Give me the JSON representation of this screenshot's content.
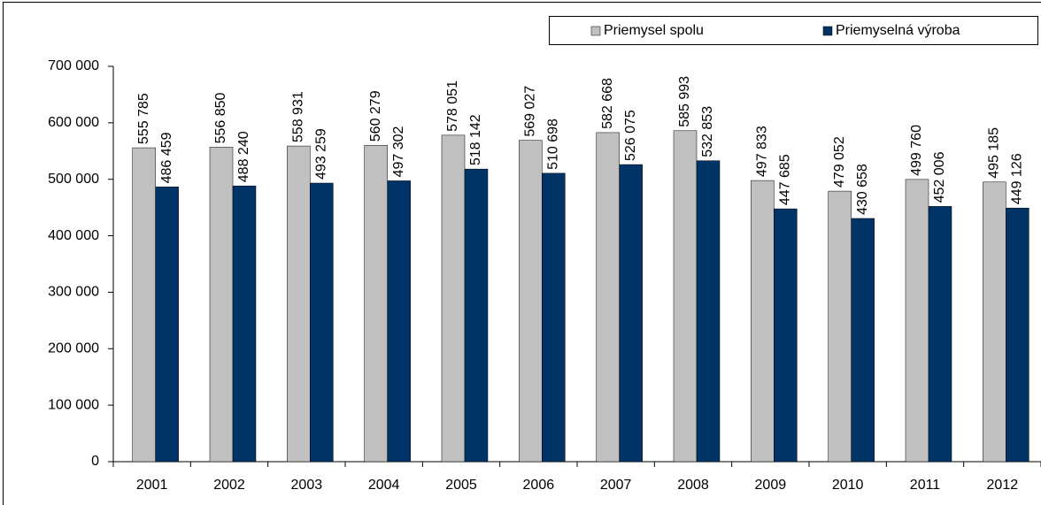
{
  "chart_data": {
    "type": "bar",
    "categories": [
      "2001",
      "2002",
      "2003",
      "2004",
      "2005",
      "2006",
      "2007",
      "2008",
      "2009",
      "2010",
      "2011",
      "2012"
    ],
    "series": [
      {
        "name": "Priemysel spolu",
        "color": "#c0c0c0",
        "values": [
          555785,
          556850,
          558931,
          560279,
          578051,
          569027,
          582668,
          585993,
          497833,
          479052,
          499760,
          495185
        ],
        "value_labels": [
          "555 785",
          "556 850",
          "558 931",
          "560 279",
          "578 051",
          "569 027",
          "582 668",
          "585 993",
          "497 833",
          "479 052",
          "499 760",
          "495 185"
        ]
      },
      {
        "name": "Priemyselná výroba",
        "color": "#003366",
        "values": [
          486459,
          488240,
          493259,
          497302,
          518142,
          510698,
          526075,
          532853,
          447685,
          430658,
          452006,
          449126
        ],
        "value_labels": [
          "486 459",
          "488 240",
          "493 259",
          "497 302",
          "518 142",
          "510 698",
          "526 075",
          "532 853",
          "447 685",
          "430 658",
          "452 006",
          "449 126"
        ]
      }
    ],
    "ylim": [
      0,
      700000
    ],
    "yticks": [
      0,
      {
        "value": 100000,
        "label": "100 000"
      },
      {
        "value": 200000,
        "label": "200 000"
      },
      {
        "value": 300000,
        "label": "300 000"
      },
      {
        "value": 400000,
        "label": "400 000"
      },
      {
        "value": 500000,
        "label": "500 000"
      },
      {
        "value": 600000,
        "label": "600 000"
      },
      {
        "value": 700000,
        "label": "700 000"
      }
    ],
    "grid": false,
    "legend": "top-right"
  }
}
